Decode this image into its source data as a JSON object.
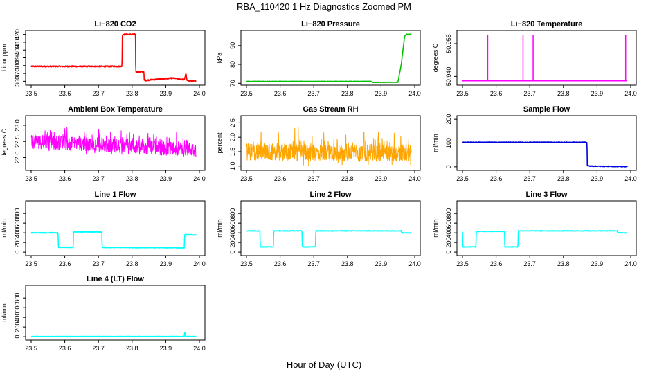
{
  "figure_title": "RBA_110420  1 Hz Diagnostics Zoomed PM",
  "xlabel": "Hour of Day (UTC)",
  "chart_data": [
    {
      "type": "line",
      "title": "Li−820 CO2",
      "ylabel": "Licor ppm",
      "color": "#ff0000",
      "xlim": [
        23.5,
        24.0
      ],
      "ylim": [
        355,
        425
      ],
      "xticks": [
        "23.5",
        "23.6",
        "23.7",
        "23.8",
        "23.9",
        "24.0"
      ],
      "yticks": [
        "360",
        "370",
        "380",
        "390",
        "400",
        "410",
        "420"
      ],
      "ytick_values": [
        360,
        370,
        380,
        390,
        400,
        410,
        420
      ],
      "noise": 0.8,
      "segments": [
        [
          23.5,
          379
        ],
        [
          23.77,
          379
        ],
        [
          23.771,
          420
        ],
        [
          23.81,
          420
        ],
        [
          23.811,
          372
        ],
        [
          23.835,
          372
        ],
        [
          23.836,
          361
        ],
        [
          23.86,
          362
        ],
        [
          23.92,
          364
        ],
        [
          23.955,
          362
        ],
        [
          23.96,
          370
        ],
        [
          23.963,
          361
        ],
        [
          23.99,
          360
        ]
      ]
    },
    {
      "type": "line",
      "title": "Li−820 Pressure",
      "ylabel": "kPa",
      "color": "#00c000",
      "xlim": [
        23.5,
        24.0
      ],
      "ylim": [
        69,
        98
      ],
      "xticks": [
        "23.5",
        "23.6",
        "23.7",
        "23.8",
        "23.9",
        "24.0"
      ],
      "yticks": [
        "70",
        "80",
        "90"
      ],
      "ytick_values": [
        70,
        80,
        90
      ],
      "noise": 0.1,
      "segments": [
        [
          23.5,
          71
        ],
        [
          23.87,
          71
        ],
        [
          23.875,
          70.5
        ],
        [
          23.95,
          70.5
        ],
        [
          23.96,
          80
        ],
        [
          23.97,
          95
        ],
        [
          23.975,
          96
        ],
        [
          23.99,
          96
        ]
      ]
    },
    {
      "type": "line",
      "title": "Li−820 Temperature",
      "ylabel": "degrees C",
      "color": "#ff00ff",
      "xlim": [
        23.5,
        24.0
      ],
      "ylim": [
        50.936,
        50.961
      ],
      "xticks": [
        "23.5",
        "23.6",
        "23.7",
        "23.8",
        "23.9",
        "24.0"
      ],
      "yticks": [
        "50.940",
        "50.955"
      ],
      "ytick_values": [
        50.94,
        50.955
      ],
      "noise": 0,
      "baseline": 50.938,
      "spikes": [
        23.575,
        23.68,
        23.71,
        23.985
      ],
      "spike_top": 50.959
    },
    {
      "type": "line",
      "title": "Ambient Box Temperature",
      "ylabel": "degrees C",
      "color": "#ff00ff",
      "xlim": [
        23.5,
        24.0
      ],
      "ylim": [
        21.6,
        23.3
      ],
      "xticks": [
        "23.5",
        "23.6",
        "23.7",
        "23.8",
        "23.9",
        "24.0"
      ],
      "yticks": [
        "22.0",
        "22.5",
        "23.0"
      ],
      "ytick_values": [
        22.0,
        22.5,
        23.0
      ],
      "noise": 0.22,
      "burst": 0.25,
      "segments": [
        [
          23.5,
          22.5
        ],
        [
          23.7,
          22.4
        ],
        [
          23.85,
          22.3
        ],
        [
          23.99,
          22.25
        ]
      ]
    },
    {
      "type": "line",
      "title": "Gas Stream RH",
      "ylabel": "percent",
      "color": "#ffa500",
      "xlim": [
        23.5,
        24.0
      ],
      "ylim": [
        0.85,
        2.75
      ],
      "xticks": [
        "23.5",
        "23.6",
        "23.7",
        "23.8",
        "23.9",
        "24.0"
      ],
      "yticks": [
        "1.0",
        "1.5",
        "2.0",
        "2.5"
      ],
      "ytick_values": [
        1.0,
        1.5,
        2.0,
        2.5
      ],
      "noise": 0.3,
      "burst": 0.4,
      "segments": [
        [
          23.5,
          1.5
        ],
        [
          23.99,
          1.45
        ]
      ]
    },
    {
      "type": "line",
      "title": "Sample Flow",
      "ylabel": "ml/min",
      "color": "#0000dd",
      "xlim": [
        23.5,
        24.0
      ],
      "ylim": [
        -15,
        215
      ],
      "xticks": [
        "23.5",
        "23.6",
        "23.7",
        "23.8",
        "23.9",
        "24.0"
      ],
      "yticks": [
        "0",
        "100",
        "200"
      ],
      "ytick_values": [
        0,
        100,
        200
      ],
      "noise": 1.5,
      "segments": [
        [
          23.5,
          103
        ],
        [
          23.87,
          103
        ],
        [
          23.871,
          5
        ],
        [
          23.88,
          3
        ],
        [
          23.99,
          1
        ]
      ]
    },
    {
      "type": "line",
      "title": "Line 1 Flow",
      "ylabel": "ml/min",
      "color": "#00ffff",
      "xlim": [
        23.5,
        24.0
      ],
      "ylim": [
        -70,
        1060
      ],
      "xticks": [
        "23.5",
        "23.6",
        "23.7",
        "23.8",
        "23.9",
        "24.0"
      ],
      "yticks": [
        "0",
        "200",
        "400",
        "600",
        "800"
      ],
      "ytick_values": [
        0,
        200,
        400,
        600,
        800
      ],
      "noise": 8,
      "segments": [
        [
          23.5,
          400
        ],
        [
          23.58,
          400
        ],
        [
          23.581,
          100
        ],
        [
          23.625,
          100
        ],
        [
          23.626,
          420
        ],
        [
          23.71,
          420
        ],
        [
          23.711,
          100
        ],
        [
          23.955,
          90
        ],
        [
          23.956,
          360
        ],
        [
          23.99,
          360
        ]
      ]
    },
    {
      "type": "line",
      "title": "Line 2 Flow",
      "ylabel": "ml/min",
      "color": "#00ffff",
      "xlim": [
        23.5,
        24.0
      ],
      "ylim": [
        -70,
        1060
      ],
      "xticks": [
        "23.5",
        "23.6",
        "23.7",
        "23.8",
        "23.9",
        "24.0"
      ],
      "yticks": [
        "0",
        "200",
        "400",
        "600",
        "800"
      ],
      "ytick_values": [
        0,
        200,
        400,
        600,
        800
      ],
      "noise": 6,
      "segments": [
        [
          23.5,
          440
        ],
        [
          23.54,
          440
        ],
        [
          23.541,
          110
        ],
        [
          23.58,
          110
        ],
        [
          23.581,
          440
        ],
        [
          23.665,
          440
        ],
        [
          23.666,
          110
        ],
        [
          23.705,
          110
        ],
        [
          23.706,
          440
        ],
        [
          23.96,
          440
        ],
        [
          23.961,
          400
        ],
        [
          23.99,
          400
        ]
      ]
    },
    {
      "type": "line",
      "title": "Line 3 Flow",
      "ylabel": "ml/min",
      "color": "#00ffff",
      "xlim": [
        23.5,
        24.0
      ],
      "ylim": [
        -70,
        1060
      ],
      "xticks": [
        "23.5",
        "23.6",
        "23.7",
        "23.8",
        "23.9",
        "24.0"
      ],
      "yticks": [
        "0",
        "200",
        "400",
        "600",
        "800"
      ],
      "ytick_values": [
        0,
        200,
        400,
        600,
        800
      ],
      "noise": 6,
      "segments": [
        [
          23.5,
          420
        ],
        [
          23.501,
          110
        ],
        [
          23.54,
          110
        ],
        [
          23.541,
          430
        ],
        [
          23.625,
          430
        ],
        [
          23.626,
          110
        ],
        [
          23.665,
          110
        ],
        [
          23.666,
          440
        ],
        [
          23.96,
          440
        ],
        [
          23.961,
          400
        ],
        [
          23.99,
          400
        ]
      ]
    },
    {
      "type": "line",
      "title": "Line 4 (LT) Flow",
      "ylabel": "ml/min",
      "color": "#00ffff",
      "xlim": [
        23.5,
        24.0
      ],
      "ylim": [
        -70,
        1060
      ],
      "xticks": [
        "23.5",
        "23.6",
        "23.7",
        "23.8",
        "23.9",
        "24.0"
      ],
      "yticks": [
        "0",
        "200",
        "400",
        "600",
        "800"
      ],
      "ytick_values": [
        0,
        200,
        400,
        600,
        800
      ],
      "noise": 4,
      "segments": [
        [
          23.5,
          5
        ],
        [
          23.955,
          5
        ],
        [
          23.956,
          100
        ],
        [
          23.96,
          5
        ],
        [
          23.99,
          5
        ]
      ]
    }
  ]
}
